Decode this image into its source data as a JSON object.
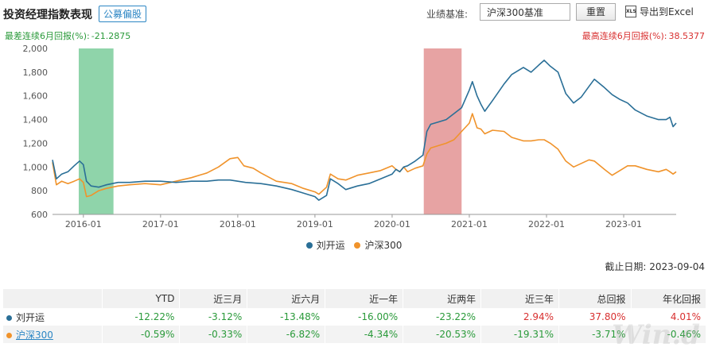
{
  "header": {
    "title": "投资经理指数表现",
    "tag": "公募偏股",
    "benchmark_label": "业绩基准:",
    "benchmark_value": "沪深300基准",
    "reset_label": "重置",
    "export_icon": "XLS",
    "export_label": "导出到Excel"
  },
  "stats": {
    "worst_label": "最差连续6月回报(%):",
    "worst_value": "-21.2875",
    "best_label": "最高连续6月回报(%):",
    "best_value": "38.5377"
  },
  "colors": {
    "manager": "#2a6f97",
    "index": "#f0932b",
    "worst_band": "#8fd4aa",
    "best_band": "#e7a3a3"
  },
  "chart_data": {
    "type": "line",
    "ylim": [
      600,
      2000
    ],
    "yticks": [
      "600",
      "800",
      "1,000",
      "1,200",
      "1,400",
      "1,600",
      "1,800",
      "2,000"
    ],
    "xlim": [
      2015.6,
      2023.68
    ],
    "xticks": [
      {
        "label": "2016-01",
        "x": 2016.0
      },
      {
        "label": "2017-01",
        "x": 2017.0
      },
      {
        "label": "2018-01",
        "x": 2018.0
      },
      {
        "label": "2019-01",
        "x": 2019.0
      },
      {
        "label": "2020-01",
        "x": 2020.0
      },
      {
        "label": "2021-01",
        "x": 2021.0
      },
      {
        "label": "2022-01",
        "x": 2022.0
      },
      {
        "label": "2023-01",
        "x": 2023.0
      }
    ],
    "bands": [
      {
        "name": "worst-6m",
        "x0": 2015.94,
        "x1": 2016.39
      },
      {
        "name": "best-6m",
        "x0": 2020.41,
        "x1": 2020.9
      }
    ],
    "series": [
      {
        "name": "刘开运",
        "points": [
          [
            2015.6,
            1060
          ],
          [
            2015.65,
            900
          ],
          [
            2015.72,
            940
          ],
          [
            2015.8,
            960
          ],
          [
            2015.88,
            1010
          ],
          [
            2015.95,
            1050
          ],
          [
            2016.0,
            1020
          ],
          [
            2016.04,
            880
          ],
          [
            2016.1,
            840
          ],
          [
            2016.2,
            830
          ],
          [
            2016.3,
            850
          ],
          [
            2016.45,
            870
          ],
          [
            2016.6,
            870
          ],
          [
            2016.8,
            880
          ],
          [
            2017.0,
            880
          ],
          [
            2017.2,
            870
          ],
          [
            2017.4,
            880
          ],
          [
            2017.6,
            880
          ],
          [
            2017.75,
            890
          ],
          [
            2017.9,
            890
          ],
          [
            2018.0,
            880
          ],
          [
            2018.1,
            870
          ],
          [
            2018.3,
            860
          ],
          [
            2018.5,
            840
          ],
          [
            2018.7,
            810
          ],
          [
            2018.85,
            780
          ],
          [
            2019.0,
            750
          ],
          [
            2019.05,
            720
          ],
          [
            2019.15,
            760
          ],
          [
            2019.2,
            900
          ],
          [
            2019.3,
            860
          ],
          [
            2019.4,
            810
          ],
          [
            2019.55,
            840
          ],
          [
            2019.7,
            860
          ],
          [
            2019.85,
            900
          ],
          [
            2020.0,
            940
          ],
          [
            2020.05,
            980
          ],
          [
            2020.1,
            960
          ],
          [
            2020.15,
            1000
          ],
          [
            2020.2,
            1010
          ],
          [
            2020.3,
            1050
          ],
          [
            2020.4,
            1100
          ],
          [
            2020.45,
            1300
          ],
          [
            2020.5,
            1360
          ],
          [
            2020.6,
            1380
          ],
          [
            2020.7,
            1400
          ],
          [
            2020.8,
            1450
          ],
          [
            2020.9,
            1500
          ],
          [
            2021.0,
            1650
          ],
          [
            2021.04,
            1720
          ],
          [
            2021.1,
            1600
          ],
          [
            2021.15,
            1530
          ],
          [
            2021.2,
            1470
          ],
          [
            2021.3,
            1560
          ],
          [
            2021.45,
            1700
          ],
          [
            2021.55,
            1780
          ],
          [
            2021.7,
            1840
          ],
          [
            2021.8,
            1800
          ],
          [
            2021.9,
            1860
          ],
          [
            2021.97,
            1900
          ],
          [
            2022.05,
            1850
          ],
          [
            2022.15,
            1800
          ],
          [
            2022.25,
            1620
          ],
          [
            2022.35,
            1540
          ],
          [
            2022.45,
            1590
          ],
          [
            2022.55,
            1680
          ],
          [
            2022.62,
            1740
          ],
          [
            2022.75,
            1670
          ],
          [
            2022.85,
            1610
          ],
          [
            2022.95,
            1570
          ],
          [
            2023.05,
            1540
          ],
          [
            2023.15,
            1480
          ],
          [
            2023.3,
            1430
          ],
          [
            2023.45,
            1400
          ],
          [
            2023.55,
            1400
          ],
          [
            2023.6,
            1420
          ],
          [
            2023.64,
            1340
          ],
          [
            2023.68,
            1370
          ]
        ]
      },
      {
        "name": "沪深300",
        "points": [
          [
            2015.6,
            1040
          ],
          [
            2015.65,
            850
          ],
          [
            2015.72,
            880
          ],
          [
            2015.8,
            860
          ],
          [
            2015.88,
            880
          ],
          [
            2015.95,
            900
          ],
          [
            2016.0,
            870
          ],
          [
            2016.04,
            750
          ],
          [
            2016.1,
            760
          ],
          [
            2016.2,
            800
          ],
          [
            2016.3,
            820
          ],
          [
            2016.45,
            840
          ],
          [
            2016.6,
            850
          ],
          [
            2016.8,
            860
          ],
          [
            2017.0,
            850
          ],
          [
            2017.2,
            880
          ],
          [
            2017.4,
            910
          ],
          [
            2017.6,
            950
          ],
          [
            2017.75,
            1000
          ],
          [
            2017.9,
            1070
          ],
          [
            2018.0,
            1080
          ],
          [
            2018.08,
            1010
          ],
          [
            2018.2,
            990
          ],
          [
            2018.3,
            950
          ],
          [
            2018.5,
            880
          ],
          [
            2018.7,
            860
          ],
          [
            2018.85,
            820
          ],
          [
            2019.0,
            790
          ],
          [
            2019.05,
            770
          ],
          [
            2019.15,
            830
          ],
          [
            2019.2,
            940
          ],
          [
            2019.3,
            900
          ],
          [
            2019.4,
            890
          ],
          [
            2019.55,
            930
          ],
          [
            2019.7,
            950
          ],
          [
            2019.85,
            970
          ],
          [
            2020.0,
            1010
          ],
          [
            2020.05,
            980
          ],
          [
            2020.1,
            960
          ],
          [
            2020.15,
            1000
          ],
          [
            2020.2,
            960
          ],
          [
            2020.3,
            990
          ],
          [
            2020.4,
            1010
          ],
          [
            2020.45,
            1110
          ],
          [
            2020.5,
            1160
          ],
          [
            2020.6,
            1180
          ],
          [
            2020.7,
            1200
          ],
          [
            2020.8,
            1230
          ],
          [
            2020.9,
            1300
          ],
          [
            2021.0,
            1370
          ],
          [
            2021.04,
            1450
          ],
          [
            2021.1,
            1330
          ],
          [
            2021.15,
            1320
          ],
          [
            2021.2,
            1280
          ],
          [
            2021.3,
            1310
          ],
          [
            2021.45,
            1300
          ],
          [
            2021.55,
            1250
          ],
          [
            2021.7,
            1220
          ],
          [
            2021.8,
            1220
          ],
          [
            2021.9,
            1230
          ],
          [
            2021.97,
            1230
          ],
          [
            2022.05,
            1200
          ],
          [
            2022.15,
            1150
          ],
          [
            2022.25,
            1050
          ],
          [
            2022.35,
            1000
          ],
          [
            2022.45,
            1030
          ],
          [
            2022.55,
            1060
          ],
          [
            2022.62,
            1050
          ],
          [
            2022.75,
            980
          ],
          [
            2022.85,
            930
          ],
          [
            2022.95,
            970
          ],
          [
            2023.05,
            1010
          ],
          [
            2023.15,
            1010
          ],
          [
            2023.3,
            980
          ],
          [
            2023.45,
            960
          ],
          [
            2023.55,
            980
          ],
          [
            2023.6,
            960
          ],
          [
            2023.64,
            940
          ],
          [
            2023.68,
            960
          ]
        ]
      }
    ]
  },
  "legend": {
    "manager": "刘开运",
    "index": "沪深300"
  },
  "as_of": "截止日期:  2023-09-04",
  "table": {
    "headers": [
      "",
      "YTD",
      "近三月",
      "近六月",
      "近一年",
      "近两年",
      "近三年",
      "总回报",
      "年化回报"
    ],
    "rows": [
      {
        "name": "刘开运",
        "values": [
          "-12.22%",
          "-3.12%",
          "-13.48%",
          "-16.00%",
          "-23.22%",
          "2.94%",
          "37.80%",
          "4.01%"
        ]
      },
      {
        "name": "沪深300",
        "values": [
          "-0.59%",
          "-0.33%",
          "-6.82%",
          "-4.34%",
          "-20.53%",
          "-19.31%",
          "-3.71%",
          "-0.46%"
        ]
      }
    ]
  }
}
